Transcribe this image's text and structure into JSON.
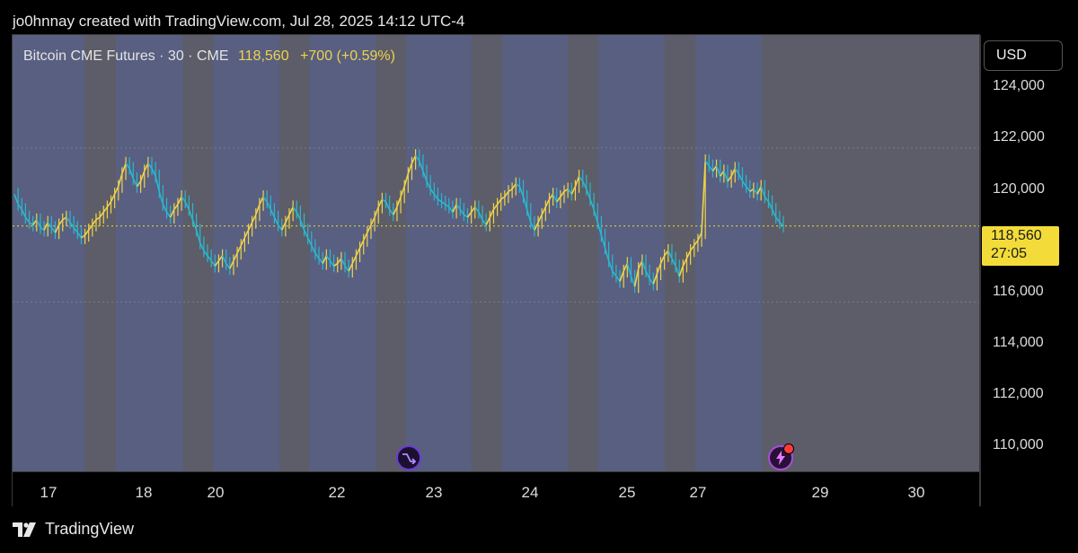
{
  "credit": "jo0hnnay created with TradingView.com, Jul 28, 2025 14:12 UTC-4",
  "legend": {
    "symbol": "Bitcoin CME Futures · 30 · CME",
    "price": "118,560",
    "change": "+700 (+0.59%)"
  },
  "currency_button": "USD",
  "price_tag": {
    "value": "118,560",
    "countdown": "27:05"
  },
  "brand": "TradingView",
  "colors": {
    "candle": "#f0d24a",
    "candle_alt": "#2ab7cf",
    "session_dark": "#5c5d68",
    "session_light": "#585f80",
    "price_line": "#f3dc39"
  },
  "chart_data": {
    "type": "line",
    "title": "Bitcoin CME Futures · 30 · CME",
    "y_ticks": [
      "124,000",
      "122,000",
      "120,000",
      "118,000",
      "116,000",
      "114,000",
      "112,000",
      "110,000"
    ],
    "y_tick_values": [
      124000,
      122000,
      120000,
      118000,
      116000,
      114000,
      112000,
      110000
    ],
    "ylim": [
      109000,
      126000
    ],
    "x_ticks": [
      "17",
      "18",
      "20",
      "22",
      "23",
      "24",
      "25",
      "27",
      "29",
      "30"
    ],
    "last_price": 118560,
    "grid_levels": [
      121600,
      115600
    ],
    "series": [
      {
        "values": [
          119800,
          119400,
          119200,
          118900,
          118700,
          118600,
          118800,
          118500,
          118400,
          118700,
          118500,
          118300,
          118600,
          118800,
          118900,
          118700,
          118500,
          118300,
          118100,
          118200,
          118400,
          118600,
          118800,
          118900,
          119100,
          119300,
          119500,
          119800,
          120100,
          120600,
          121000,
          120800,
          120400,
          120100,
          120300,
          120700,
          121000,
          120800,
          120500,
          119900,
          119400,
          119100,
          118900,
          119200,
          119400,
          119700,
          119500,
          119200,
          118800,
          118400,
          117900,
          117600,
          117400,
          117200,
          117000,
          117200,
          117400,
          117100,
          116900,
          117200,
          117500,
          117800,
          118100,
          118400,
          118700,
          119000,
          119400,
          119700,
          119500,
          119200,
          118900,
          118600,
          118400,
          118700,
          119000,
          119300,
          119100,
          118800,
          118400,
          118100,
          117800,
          117500,
          117300,
          117100,
          117400,
          117200,
          117000,
          117100,
          117300,
          117000,
          116800,
          117100,
          117400,
          117700,
          118000,
          118300,
          118600,
          118900,
          119300,
          119600,
          119500,
          119200,
          119000,
          119300,
          119700,
          120100,
          120600,
          121000,
          121300,
          121100,
          120700,
          120300,
          120000,
          119800,
          119600,
          119500,
          119400,
          119300,
          119100,
          119400,
          119200,
          119000,
          118900,
          119100,
          119300,
          119100,
          118800,
          118600,
          118900,
          119200,
          119400,
          119600,
          119700,
          119900,
          120000,
          120200,
          120100,
          119700,
          119200,
          118700,
          118400,
          118700,
          119000,
          119300,
          119600,
          119800,
          119500,
          119700,
          119900,
          120000,
          119800,
          120100,
          120500,
          120300,
          120000,
          119600,
          119200,
          118700,
          118200,
          117700,
          117200,
          116800,
          116600,
          116400,
          116800,
          117100,
          116600,
          116200,
          116900,
          117200,
          116800,
          116500,
          116300,
          116700,
          117100,
          117400,
          117600,
          117300,
          117000,
          116600,
          117000,
          117300,
          117600,
          117800,
          118000,
          118300,
          121100,
          120900,
          120700,
          120900,
          120500,
          120700,
          120300,
          120500,
          120800,
          120600,
          120300,
          120100,
          119900,
          120000,
          119800,
          120100,
          119700,
          119500,
          119200,
          118900,
          118700,
          118560
        ]
      }
    ]
  }
}
